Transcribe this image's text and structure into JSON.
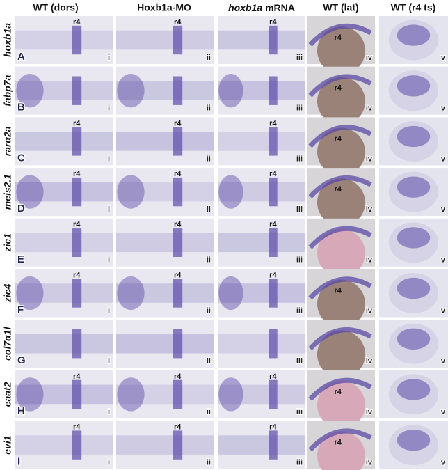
{
  "column_headers": [
    "WT (dors)",
    "Hoxb1a-MO",
    {
      "gene": "hoxb1a",
      "suffix": "mRNA"
    },
    "WT (lat)",
    "WT (r4 ts)"
  ],
  "region_label": "r4",
  "panel_numerals": [
    "i",
    "ii",
    "iii",
    "iv",
    "v"
  ],
  "rows": [
    {
      "gene": "hoxb1a",
      "letter": "A"
    },
    {
      "gene": "fabp7a",
      "letter": "B"
    },
    {
      "gene": "rarα2a",
      "letter": "C"
    },
    {
      "gene": "meis2.1",
      "letter": "D"
    },
    {
      "gene": "zic1",
      "letter": "E"
    },
    {
      "gene": "zic4",
      "letter": "F"
    },
    {
      "gene": "col7α1l",
      "letter": "G"
    },
    {
      "gene": "eaat2",
      "letter": "H"
    },
    {
      "gene": "evi1",
      "letter": "I"
    }
  ]
}
